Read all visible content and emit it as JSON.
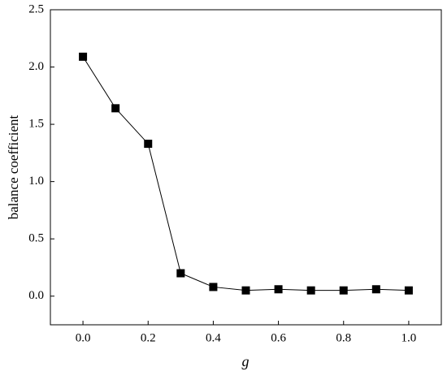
{
  "chart_data": {
    "type": "line",
    "x_label": "g",
    "y_label": "balance coefficient",
    "x": [
      0.0,
      0.1,
      0.2,
      0.3,
      0.4,
      0.5,
      0.6,
      0.7,
      0.8,
      0.9,
      1.0
    ],
    "series": [
      {
        "color": "#000000",
        "values": [
          2.09,
          1.64,
          1.33,
          0.2,
          0.08,
          0.05,
          0.06,
          0.05,
          0.05,
          0.06,
          0.05
        ]
      }
    ],
    "xlim": [
      -0.1,
      1.1
    ],
    "xticks": [
      {
        "value": 0,
        "label": "0.0"
      },
      0.2,
      0.4,
      0.6,
      0.8,
      {
        "value": 1,
        "label": "1.0"
      }
    ],
    "ylim": [
      -0.25,
      2.5
    ],
    "yticks": [
      {
        "value": 0,
        "label": "0.0"
      },
      0.5,
      {
        "value": 1,
        "label": "1.0"
      },
      1.5,
      {
        "value": 2,
        "label": "2.0"
      },
      2.5
    ],
    "grid": false
  }
}
